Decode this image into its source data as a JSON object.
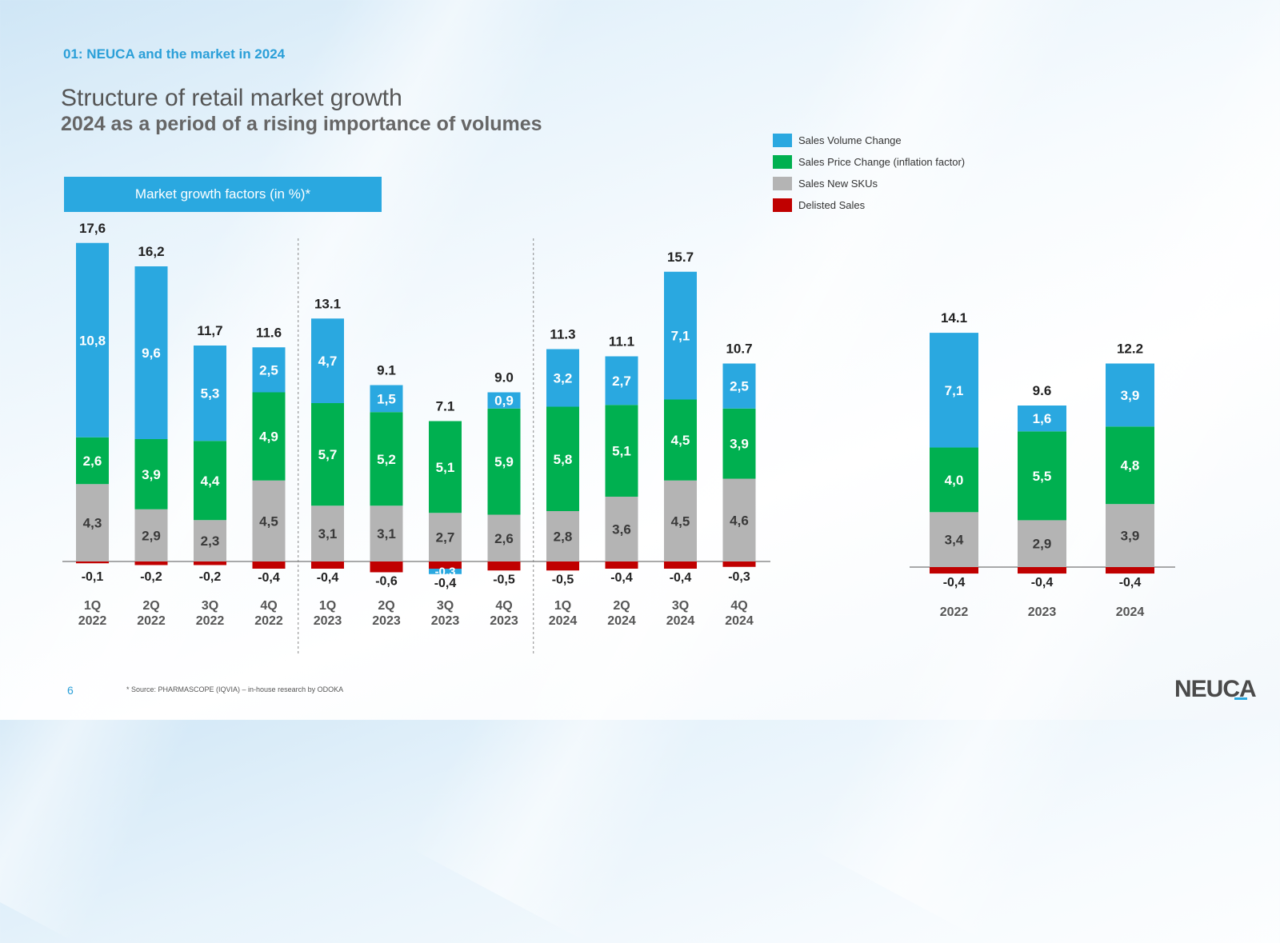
{
  "header": {
    "section": "01: NEUCA and the market in 2024",
    "title": "Structure of retail market growth",
    "subtitle": "2024 as a period of a rising importance of volumes"
  },
  "panel_label": "Market growth factors (in %)*",
  "colors": {
    "volume": "#2aa8e0",
    "price": "#00b050",
    "new_skus": "#b4b4b4",
    "delisted": "#c00000"
  },
  "legend": [
    {
      "label": "Sales Volume Change",
      "color": "#2aa8e0"
    },
    {
      "label": "Sales Price Change (inflation factor)",
      "color": "#00b050"
    },
    {
      "label": "Sales New SKUs",
      "color": "#b4b4b4"
    },
    {
      "label": "Delisted Sales",
      "color": "#c00000"
    }
  ],
  "chart_data": [
    {
      "type": "bar",
      "stacked": true,
      "title": "Market growth factors (in %)*",
      "categories": [
        [
          "1Q",
          "2022"
        ],
        [
          "2Q",
          "2022"
        ],
        [
          "3Q",
          "2022"
        ],
        [
          "4Q",
          "2022"
        ],
        [
          "1Q",
          "2023"
        ],
        [
          "2Q",
          "2023"
        ],
        [
          "3Q",
          "2023"
        ],
        [
          "4Q",
          "2023"
        ],
        [
          "1Q",
          "2024"
        ],
        [
          "2Q",
          "2024"
        ],
        [
          "3Q",
          "2024"
        ],
        [
          "4Q",
          "2024"
        ]
      ],
      "series": [
        {
          "name": "Sales New SKUs",
          "key": "new_skus",
          "values": [
            4.3,
            2.9,
            2.3,
            4.5,
            3.1,
            3.1,
            2.7,
            2.6,
            2.8,
            3.6,
            4.5,
            4.6
          ],
          "labels": [
            "4,3",
            "2,9",
            "2,3",
            "4,5",
            "3,1",
            "3,1",
            "2,7",
            "2,6",
            "2,8",
            "3,6",
            "4,5",
            "4,6"
          ]
        },
        {
          "name": "Sales Price Change (inflation factor)",
          "key": "price",
          "values": [
            2.6,
            3.9,
            4.4,
            4.9,
            5.7,
            5.2,
            5.1,
            5.9,
            5.8,
            5.1,
            4.5,
            3.9
          ],
          "labels": [
            "2,6",
            "3,9",
            "4,4",
            "4,9",
            "5,7",
            "5,2",
            "5,1",
            "5,9",
            "5,8",
            "5,1",
            "4,5",
            "3,9"
          ]
        },
        {
          "name": "Sales Volume Change",
          "key": "volume",
          "values": [
            10.8,
            9.6,
            5.3,
            2.5,
            4.7,
            1.5,
            -0.3,
            0.9,
            3.2,
            2.7,
            7.1,
            2.5
          ],
          "labels": [
            "10,8",
            "9,6",
            "5,3",
            "2,5",
            "4,7",
            "1,5",
            "-0,3",
            "0,9",
            "3,2",
            "2,7",
            "7,1",
            "2,5"
          ]
        },
        {
          "name": "Delisted Sales",
          "key": "delisted",
          "values": [
            -0.1,
            -0.2,
            -0.2,
            -0.4,
            -0.4,
            -0.6,
            -0.4,
            -0.5,
            -0.5,
            -0.4,
            -0.4,
            -0.3
          ],
          "labels": [
            "-0,1",
            "-0,2",
            "-0,2",
            "-0,4",
            "-0,4",
            "-0,6",
            "-0,4",
            "-0,5",
            "-0,5",
            "-0,4",
            "-0,4",
            "-0,3"
          ]
        }
      ],
      "totals": [
        "17,6",
        "16,2",
        "11,7",
        "11.6",
        "13.1",
        "9.1",
        "7.1",
        "9.0",
        "11.3",
        "11.1",
        "15.7",
        "10.7"
      ],
      "total_values": [
        17.6,
        16.2,
        11.7,
        11.6,
        13.1,
        9.1,
        7.1,
        9.0,
        11.3,
        11.1,
        15.7,
        10.7
      ],
      "year_separators": true
    },
    {
      "type": "bar",
      "stacked": true,
      "categories": [
        [
          "2022"
        ],
        [
          "2023"
        ],
        [
          "2024"
        ]
      ],
      "series": [
        {
          "name": "Sales New SKUs",
          "key": "new_skus",
          "values": [
            3.4,
            2.9,
            3.9
          ],
          "labels": [
            "3,4",
            "2,9",
            "3,9"
          ]
        },
        {
          "name": "Sales Price Change (inflation factor)",
          "key": "price",
          "values": [
            4.0,
            5.5,
            4.8
          ],
          "labels": [
            "4,0",
            "5,5",
            "4,8"
          ]
        },
        {
          "name": "Sales Volume Change",
          "key": "volume",
          "values": [
            7.1,
            1.6,
            3.9
          ],
          "labels": [
            "7,1",
            "1,6",
            "3,9"
          ]
        },
        {
          "name": "Delisted Sales",
          "key": "delisted",
          "values": [
            -0.4,
            -0.4,
            -0.4
          ],
          "labels": [
            "-0,4",
            "-0,4",
            "-0,4"
          ]
        }
      ],
      "totals": [
        "14.1",
        "9.6",
        "12.2"
      ],
      "total_values": [
        14.1,
        9.6,
        12.2
      ]
    }
  ],
  "footer": {
    "page": "6",
    "source": "* Source: PHARMASCOPE (IQVIA) – in-house research by ODOKA",
    "logo": "NEUCA"
  }
}
